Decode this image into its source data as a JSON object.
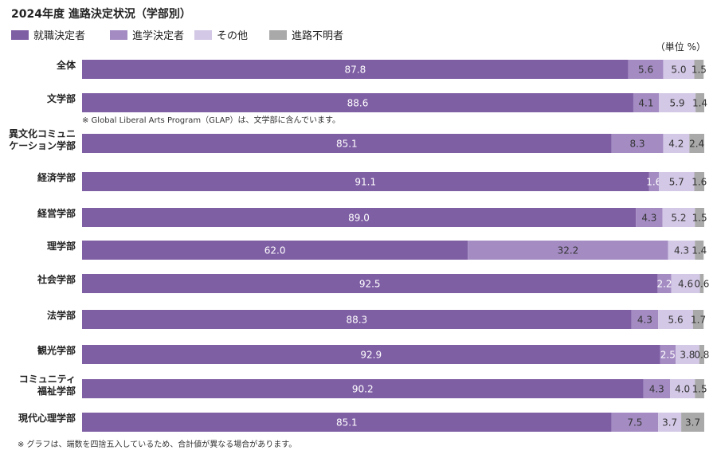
{
  "chart_data": {
    "type": "bar",
    "orientation": "horizontal",
    "stacked": true,
    "title": "2024年度 進路決定状況（学部別）",
    "unit_label": "（単位 %）",
    "legend_placement": "top-left",
    "categories": [
      [
        "全体"
      ],
      [
        "文学部"
      ],
      [
        "異文化コミュニ",
        "ケーション学部"
      ],
      [
        "経済学部"
      ],
      [
        "経営学部"
      ],
      [
        "理学部"
      ],
      [
        "社会学部"
      ],
      [
        "法学部"
      ],
      [
        "観光学部"
      ],
      [
        "コミュニティ",
        "福祉学部"
      ],
      [
        "現代心理学部"
      ]
    ],
    "series": [
      {
        "name": "就職決定者",
        "color": "#7f5fa4",
        "values": [
          87.8,
          88.6,
          85.1,
          91.1,
          89.0,
          62.0,
          92.5,
          88.3,
          92.9,
          90.2,
          85.1
        ]
      },
      {
        "name": "進学決定者",
        "color": "#a48cc3",
        "values": [
          5.6,
          4.1,
          8.3,
          1.6,
          4.3,
          32.2,
          2.2,
          4.3,
          2.5,
          4.3,
          7.5
        ]
      },
      {
        "name": "その他",
        "color": "#d3c8e6",
        "values": [
          5.0,
          5.9,
          4.2,
          5.7,
          5.2,
          4.3,
          4.6,
          5.6,
          3.8,
          4.0,
          3.7
        ]
      },
      {
        "name": "進路不明者",
        "color": "#a9a9a9",
        "values": [
          1.5,
          1.4,
          2.4,
          1.6,
          1.5,
          1.4,
          0.6,
          1.7,
          0.8,
          1.5,
          3.7
        ]
      }
    ],
    "annotations": [
      {
        "after_category": "文学部",
        "text": "※ Global Liberal Arts Program（GLAP）は、文学部に含んでいます。"
      }
    ],
    "footnote": "※ グラフは、端数を四捨五入しているため、合計値が異なる場合があります。",
    "xlim": [
      0,
      100
    ],
    "grid": false
  }
}
